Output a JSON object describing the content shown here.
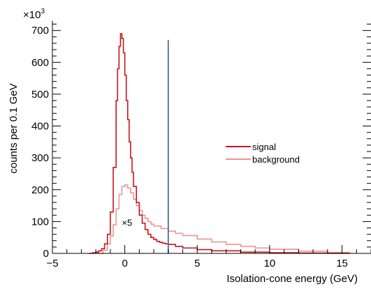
{
  "chart_data": {
    "type": "line",
    "xlabel": "Isolation-cone energy (GeV)",
    "ylabel": "counts per 0.1 GeV",
    "yscale_label": "×10",
    "yscale_exp": "3",
    "xlim": [
      -5,
      17
    ],
    "ylim": [
      0,
      730
    ],
    "xticks": [
      -5,
      0,
      5,
      10,
      15
    ],
    "yticks": [
      0,
      100,
      200,
      300,
      400,
      500,
      600,
      700
    ],
    "legend_position": "center-right",
    "grid": false,
    "annotations": [
      {
        "text": "×5",
        "x": -0.3,
        "y": 95
      }
    ],
    "vertical_line": {
      "x": 3,
      "y_top": 670,
      "color": "#4a6f8a"
    },
    "series": [
      {
        "name": "signal",
        "color": "#c8141e",
        "x": [
          -2.5,
          -2.2,
          -2.0,
          -1.8,
          -1.6,
          -1.4,
          -1.2,
          -1.0,
          -0.8,
          -0.6,
          -0.5,
          -0.4,
          -0.3,
          -0.2,
          -0.1,
          0.0,
          0.1,
          0.2,
          0.3,
          0.4,
          0.5,
          0.6,
          0.8,
          1.0,
          1.2,
          1.4,
          1.6,
          1.8,
          2.0,
          2.2,
          2.4,
          2.6,
          2.8,
          3.0,
          3.5,
          4.0,
          5.0,
          6.0,
          8.0,
          10.0,
          12.0,
          14.0,
          15.5
        ],
        "values": [
          0,
          2,
          4,
          8,
          15,
          30,
          60,
          130,
          270,
          480,
          580,
          650,
          690,
          675,
          630,
          560,
          480,
          420,
          350,
          300,
          255,
          210,
          160,
          120,
          95,
          75,
          60,
          50,
          44,
          38,
          35,
          32,
          30,
          28,
          22,
          17,
          12,
          8,
          4,
          2,
          1,
          0.5,
          0
        ]
      },
      {
        "name": "background",
        "color": "#ec9494",
        "x": [
          -2.0,
          -1.5,
          -1.2,
          -1.0,
          -0.8,
          -0.6,
          -0.4,
          -0.2,
          0.0,
          0.2,
          0.4,
          0.6,
          0.8,
          1.0,
          1.2,
          1.4,
          1.6,
          1.8,
          2.0,
          2.5,
          3.0,
          3.5,
          4.0,
          5.0,
          6.0,
          7.0,
          8.0,
          9.0,
          10.0,
          12.0,
          14.0,
          15.5
        ],
        "values": [
          0,
          10,
          30,
          55,
          90,
          140,
          185,
          210,
          215,
          205,
          190,
          170,
          150,
          135,
          120,
          110,
          100,
          92,
          86,
          78,
          70,
          63,
          56,
          45,
          36,
          28,
          22,
          17,
          13,
          7,
          3,
          0
        ]
      }
    ]
  }
}
